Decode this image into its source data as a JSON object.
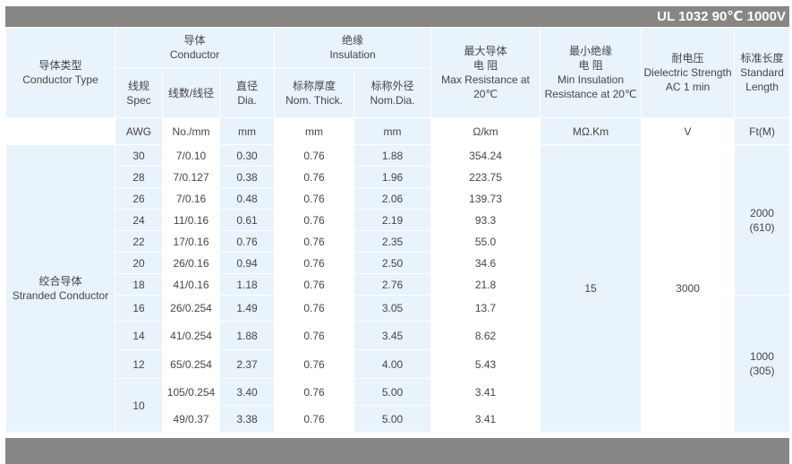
{
  "title": "UL 1032 90℃ 1000V",
  "header": {
    "type_cn": "导体类型",
    "type_en": "Conductor Type",
    "conductor_cn": "导体",
    "conductor_en": "Conductor",
    "insulation_cn": "绝缘",
    "insulation_en": "Insulation",
    "maxres_cn1": "最大导体",
    "maxres_cn2": "电 阻",
    "maxres_en": "Max Resistance at 20℃",
    "mininsul_cn1": "最小绝缘",
    "mininsul_cn2": "电 阻",
    "mininsul_en": "Min Insulation Resistance at 20℃",
    "diel_cn": "耐电压",
    "diel_en": "Dielectric Strength AC 1 min",
    "len_cn": "标准长度",
    "len_en": "Standard Length",
    "spec_cn": "线规",
    "spec_en": "Spec",
    "strand_cn": "线数/线径",
    "dia_cn": "直径",
    "dia_en": "Dia.",
    "thick_cn": "标称厚度",
    "thick_en": "Nom. Thick.",
    "nomdia_cn": "标称外径",
    "nomdia_en": "Nom.Dia."
  },
  "units": {
    "spec": "AWG",
    "strand": "No./mm",
    "dia": "mm",
    "thick": "mm",
    "nomdia": "mm",
    "res": "Ω/km",
    "insul": "MΩ.Km",
    "diel": "V",
    "len": "Ft(M)"
  },
  "conductor_type_cn": "绞合导体",
  "conductor_type_en": "Stranded Conductor",
  "min_insulation": "15",
  "dielectric": "3000",
  "length_a_value": "2000",
  "length_a_metric": "(610)",
  "length_b_value": "1000",
  "length_b_metric": "(305)",
  "rows": [
    {
      "awg": "30",
      "strand": "7/0.10",
      "dia": "0.30",
      "thick": "0.76",
      "nomdia": "1.88",
      "res": "354.24"
    },
    {
      "awg": "28",
      "strand": "7/0.127",
      "dia": "0.38",
      "thick": "0.76",
      "nomdia": "1.96",
      "res": "223.75"
    },
    {
      "awg": "26",
      "strand": "7/0.16",
      "dia": "0.48",
      "thick": "0.76",
      "nomdia": "2.06",
      "res": "139.73"
    },
    {
      "awg": "24",
      "strand": "11/0.16",
      "dia": "0.61",
      "thick": "0.76",
      "nomdia": "2.19",
      "res": "93.3"
    },
    {
      "awg": "22",
      "strand": "17/0.16",
      "dia": "0.76",
      "thick": "0.76",
      "nomdia": "2.35",
      "res": "55.0"
    },
    {
      "awg": "20",
      "strand": "26/0.16",
      "dia": "0.94",
      "thick": "0.76",
      "nomdia": "2.50",
      "res": "34.6"
    },
    {
      "awg": "18",
      "strand": "41/0.16",
      "dia": "1.18",
      "thick": "0.76",
      "nomdia": "2.76",
      "res": "21.8"
    },
    {
      "awg": "16",
      "strand": "26/0.254",
      "dia": "1.49",
      "thick": "0.76",
      "nomdia": "3.05",
      "res": "13.7"
    },
    {
      "awg": "14",
      "strand": "41/0.254",
      "dia": "1.88",
      "thick": "0.76",
      "nomdia": "3.45",
      "res": "8.62"
    },
    {
      "awg": "12",
      "strand": "65/0.254",
      "dia": "2.37",
      "thick": "0.76",
      "nomdia": "4.00",
      "res": "5.43"
    },
    {
      "awg": "10",
      "strand": "105/0.254",
      "dia": "3.40",
      "thick": "0.76",
      "nomdia": "5.00",
      "res": "3.41"
    },
    {
      "strand": "49/0.37",
      "dia": "3.38",
      "thick": "0.76",
      "nomdia": "5.00",
      "res": "3.41"
    }
  ]
}
